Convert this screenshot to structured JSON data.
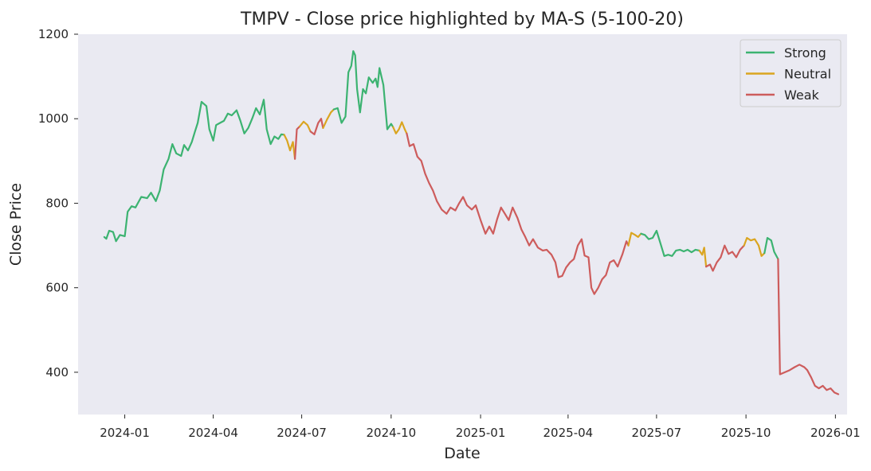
{
  "chart_data": {
    "type": "line",
    "title": "TMPV - Close price highlighted by MA-S (5-100-20)",
    "xlabel": "Date",
    "ylabel": "Close Price",
    "x_range": [
      "2023-11-14",
      "2026-01-13"
    ],
    "ylim": [
      300,
      1200
    ],
    "x_ticks": [
      "2024-01",
      "2024-04",
      "2024-07",
      "2024-10",
      "2025-01",
      "2025-04",
      "2025-07",
      "2025-10",
      "2026-01"
    ],
    "y_ticks": [
      400,
      600,
      800,
      1000,
      1200
    ],
    "grid": false,
    "background": "#eaeaf2",
    "legend": {
      "position": "top-right",
      "entries": [
        {
          "key": "strong",
          "label": "Strong",
          "color": "#3cb371"
        },
        {
          "key": "neutral",
          "label": "Neutral",
          "color": "#daa520"
        },
        {
          "key": "weak",
          "label": "Weak",
          "color": "#cd5c5c"
        }
      ]
    },
    "segments": [
      {
        "state": "strong",
        "points": [
          [
            "2023-12-11",
            720
          ],
          [
            "2023-12-13",
            716
          ],
          [
            "2023-12-16",
            735
          ],
          [
            "2023-12-20",
            732
          ],
          [
            "2023-12-23",
            710
          ],
          [
            "2023-12-27",
            725
          ],
          [
            "2024-01-01",
            722
          ],
          [
            "2024-01-04",
            780
          ],
          [
            "2024-01-08",
            793
          ],
          [
            "2024-01-12",
            790
          ],
          [
            "2024-01-18",
            815
          ],
          [
            "2024-01-24",
            812
          ],
          [
            "2024-01-28",
            825
          ],
          [
            "2024-02-02",
            805
          ],
          [
            "2024-02-06",
            830
          ],
          [
            "2024-02-10",
            880
          ],
          [
            "2024-02-15",
            905
          ],
          [
            "2024-02-19",
            940
          ],
          [
            "2024-02-23",
            918
          ],
          [
            "2024-02-28",
            912
          ],
          [
            "2024-03-02",
            938
          ],
          [
            "2024-03-06",
            925
          ],
          [
            "2024-03-10",
            945
          ],
          [
            "2024-03-13",
            968
          ],
          [
            "2024-03-16",
            990
          ],
          [
            "2024-03-20",
            1040
          ],
          [
            "2024-03-25",
            1030
          ],
          [
            "2024-03-28",
            975
          ],
          [
            "2024-04-01",
            948
          ],
          [
            "2024-04-04",
            985
          ],
          [
            "2024-04-08",
            990
          ],
          [
            "2024-04-12",
            995
          ],
          [
            "2024-04-16",
            1012
          ],
          [
            "2024-04-20",
            1008
          ],
          [
            "2024-04-25",
            1020
          ],
          [
            "2024-04-29",
            995
          ],
          [
            "2024-05-03",
            965
          ],
          [
            "2024-05-07",
            978
          ],
          [
            "2024-05-11",
            1000
          ],
          [
            "2024-05-15",
            1025
          ],
          [
            "2024-05-19",
            1010
          ],
          [
            "2024-05-23",
            1045
          ],
          [
            "2024-05-26",
            975
          ],
          [
            "2024-05-30",
            940
          ],
          [
            "2024-06-03",
            958
          ],
          [
            "2024-06-07",
            952
          ],
          [
            "2024-06-10",
            963
          ],
          [
            "2024-06-13",
            962
          ]
        ]
      },
      {
        "state": "neutral",
        "points": [
          [
            "2024-06-13",
            962
          ],
          [
            "2024-06-16",
            948
          ],
          [
            "2024-06-19",
            925
          ],
          [
            "2024-06-22",
            945
          ],
          [
            "2024-06-24",
            905
          ]
        ]
      },
      {
        "state": "weak",
        "points": [
          [
            "2024-06-24",
            905
          ],
          [
            "2024-06-26",
            975
          ],
          [
            "2024-06-29",
            982
          ]
        ]
      },
      {
        "state": "neutral",
        "points": [
          [
            "2024-06-29",
            982
          ],
          [
            "2024-07-03",
            993
          ],
          [
            "2024-07-07",
            985
          ],
          [
            "2024-07-10",
            970
          ]
        ]
      },
      {
        "state": "weak",
        "points": [
          [
            "2024-07-10",
            970
          ],
          [
            "2024-07-14",
            963
          ],
          [
            "2024-07-18",
            990
          ],
          [
            "2024-07-21",
            1000
          ],
          [
            "2024-07-23",
            978
          ]
        ]
      },
      {
        "state": "neutral",
        "points": [
          [
            "2024-07-23",
            978
          ],
          [
            "2024-07-27",
            998
          ],
          [
            "2024-07-31",
            1015
          ],
          [
            "2024-08-03",
            1022
          ]
        ]
      },
      {
        "state": "strong",
        "points": [
          [
            "2024-08-03",
            1022
          ],
          [
            "2024-08-07",
            1025
          ],
          [
            "2024-08-11",
            990
          ],
          [
            "2024-08-15",
            1005
          ],
          [
            "2024-08-18",
            1110
          ],
          [
            "2024-08-21",
            1125
          ],
          [
            "2024-08-23",
            1160
          ],
          [
            "2024-08-25",
            1150
          ],
          [
            "2024-08-27",
            1070
          ],
          [
            "2024-08-30",
            1015
          ],
          [
            "2024-09-02",
            1070
          ],
          [
            "2024-09-05",
            1060
          ],
          [
            "2024-09-08",
            1098
          ],
          [
            "2024-09-12",
            1085
          ],
          [
            "2024-09-15",
            1095
          ],
          [
            "2024-09-17",
            1075
          ],
          [
            "2024-09-19",
            1120
          ],
          [
            "2024-09-23",
            1080
          ],
          [
            "2024-09-27",
            975
          ],
          [
            "2024-10-01",
            988
          ],
          [
            "2024-10-03",
            980
          ]
        ]
      },
      {
        "state": "neutral",
        "points": [
          [
            "2024-10-03",
            980
          ],
          [
            "2024-10-06",
            965
          ],
          [
            "2024-10-09",
            975
          ],
          [
            "2024-10-12",
            992
          ],
          [
            "2024-10-15",
            975
          ],
          [
            "2024-10-17",
            965
          ]
        ]
      },
      {
        "state": "weak",
        "points": [
          [
            "2024-10-17",
            965
          ],
          [
            "2024-10-20",
            935
          ],
          [
            "2024-10-24",
            940
          ],
          [
            "2024-10-28",
            910
          ],
          [
            "2024-11-01",
            900
          ],
          [
            "2024-11-05",
            870
          ],
          [
            "2024-11-09",
            848
          ],
          [
            "2024-11-13",
            830
          ],
          [
            "2024-11-17",
            805
          ],
          [
            "2024-11-22",
            785
          ],
          [
            "2024-11-27",
            775
          ],
          [
            "2024-12-01",
            790
          ],
          [
            "2024-12-06",
            783
          ],
          [
            "2024-12-10",
            800
          ],
          [
            "2024-12-14",
            815
          ],
          [
            "2024-12-18",
            795
          ],
          [
            "2024-12-23",
            785
          ],
          [
            "2024-12-27",
            795
          ],
          [
            "2025-01-01",
            760
          ],
          [
            "2025-01-06",
            728
          ],
          [
            "2025-01-10",
            745
          ],
          [
            "2025-01-14",
            728
          ],
          [
            "2025-01-18",
            762
          ],
          [
            "2025-01-22",
            790
          ],
          [
            "2025-01-26",
            775
          ],
          [
            "2025-01-30",
            760
          ],
          [
            "2025-02-03",
            790
          ],
          [
            "2025-02-08",
            765
          ],
          [
            "2025-02-12",
            738
          ],
          [
            "2025-02-16",
            720
          ],
          [
            "2025-02-20",
            700
          ],
          [
            "2025-02-24",
            715
          ],
          [
            "2025-03-01",
            695
          ],
          [
            "2025-03-06",
            688
          ],
          [
            "2025-03-10",
            690
          ],
          [
            "2025-03-15",
            678
          ],
          [
            "2025-03-19",
            660
          ],
          [
            "2025-03-22",
            625
          ],
          [
            "2025-03-26",
            628
          ],
          [
            "2025-03-30",
            648
          ],
          [
            "2025-04-03",
            660
          ],
          [
            "2025-04-07",
            668
          ],
          [
            "2025-04-11",
            700
          ],
          [
            "2025-04-15",
            715
          ],
          [
            "2025-04-18",
            676
          ],
          [
            "2025-04-22",
            672
          ],
          [
            "2025-04-25",
            600
          ],
          [
            "2025-04-28",
            585
          ],
          [
            "2025-05-02",
            600
          ],
          [
            "2025-05-06",
            620
          ],
          [
            "2025-05-10",
            630
          ],
          [
            "2025-05-14",
            660
          ],
          [
            "2025-05-18",
            665
          ],
          [
            "2025-05-22",
            650
          ],
          [
            "2025-05-27",
            680
          ],
          [
            "2025-05-31",
            710
          ],
          [
            "2025-06-02",
            700
          ]
        ]
      },
      {
        "state": "neutral",
        "points": [
          [
            "2025-06-02",
            700
          ],
          [
            "2025-06-05",
            730
          ],
          [
            "2025-06-09",
            725
          ],
          [
            "2025-06-12",
            720
          ],
          [
            "2025-06-15",
            728
          ]
        ]
      },
      {
        "state": "strong",
        "points": [
          [
            "2025-06-15",
            728
          ],
          [
            "2025-06-19",
            725
          ],
          [
            "2025-06-23",
            715
          ],
          [
            "2025-06-27",
            718
          ],
          [
            "2025-07-01",
            735
          ],
          [
            "2025-07-05",
            705
          ],
          [
            "2025-07-09",
            675
          ],
          [
            "2025-07-13",
            678
          ],
          [
            "2025-07-17",
            675
          ],
          [
            "2025-07-21",
            688
          ],
          [
            "2025-07-25",
            690
          ],
          [
            "2025-07-29",
            686
          ],
          [
            "2025-08-02",
            690
          ],
          [
            "2025-08-06",
            684
          ],
          [
            "2025-08-10",
            690
          ],
          [
            "2025-08-14",
            688
          ]
        ]
      },
      {
        "state": "neutral",
        "points": [
          [
            "2025-08-14",
            688
          ],
          [
            "2025-08-17",
            678
          ],
          [
            "2025-08-19",
            695
          ],
          [
            "2025-08-21",
            650
          ]
        ]
      },
      {
        "state": "weak",
        "points": [
          [
            "2025-08-21",
            650
          ],
          [
            "2025-08-25",
            655
          ],
          [
            "2025-08-28",
            640
          ],
          [
            "2025-09-01",
            660
          ],
          [
            "2025-09-05",
            672
          ],
          [
            "2025-09-09",
            700
          ],
          [
            "2025-09-13",
            680
          ],
          [
            "2025-09-17",
            685
          ],
          [
            "2025-09-21",
            672
          ],
          [
            "2025-09-25",
            690
          ],
          [
            "2025-09-29",
            700
          ]
        ]
      },
      {
        "state": "neutral",
        "points": [
          [
            "2025-09-29",
            700
          ],
          [
            "2025-10-02",
            718
          ],
          [
            "2025-10-06",
            712
          ],
          [
            "2025-10-10",
            715
          ],
          [
            "2025-10-14",
            700
          ],
          [
            "2025-10-17",
            675
          ],
          [
            "2025-10-20",
            682
          ]
        ]
      },
      {
        "state": "strong",
        "points": [
          [
            "2025-10-20",
            682
          ],
          [
            "2025-10-23",
            718
          ],
          [
            "2025-10-27",
            712
          ],
          [
            "2025-10-30",
            685
          ],
          [
            "2025-11-03",
            668
          ]
        ]
      },
      {
        "state": "weak",
        "points": [
          [
            "2025-11-03",
            668
          ],
          [
            "2025-11-05",
            395
          ],
          [
            "2025-11-10",
            400
          ],
          [
            "2025-11-15",
            405
          ],
          [
            "2025-11-20",
            412
          ],
          [
            "2025-11-25",
            418
          ],
          [
            "2025-11-30",
            412
          ],
          [
            "2025-12-03",
            405
          ],
          [
            "2025-12-07",
            388
          ],
          [
            "2025-12-11",
            368
          ],
          [
            "2025-12-15",
            362
          ],
          [
            "2025-12-19",
            368
          ],
          [
            "2025-12-23",
            358
          ],
          [
            "2025-12-27",
            362
          ],
          [
            "2025-12-31",
            352
          ],
          [
            "2026-01-04",
            348
          ]
        ]
      }
    ]
  }
}
